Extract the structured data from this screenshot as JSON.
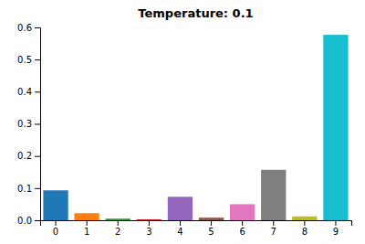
{
  "chart_data": {
    "type": "bar",
    "title": "Temperature: 0.1",
    "categories": [
      0,
      1,
      2,
      3,
      4,
      5,
      6,
      7,
      8,
      9
    ],
    "values": [
      0.093,
      0.022,
      0.005,
      0.003,
      0.073,
      0.008,
      0.05,
      0.157,
      0.012,
      0.577
    ],
    "colors": [
      "#1f77b4",
      "#ff7f0e",
      "#2ca02c",
      "#d62728",
      "#9467bd",
      "#8c564b",
      "#e377c2",
      "#7f7f7f",
      "#bcbd22",
      "#17becf"
    ],
    "ylim": [
      0,
      0.6
    ],
    "yticks": [
      {
        "value": 0.0,
        "label": "0.0"
      },
      0.1,
      0.2,
      0.3,
      0.4,
      0.5,
      0.6
    ]
  }
}
